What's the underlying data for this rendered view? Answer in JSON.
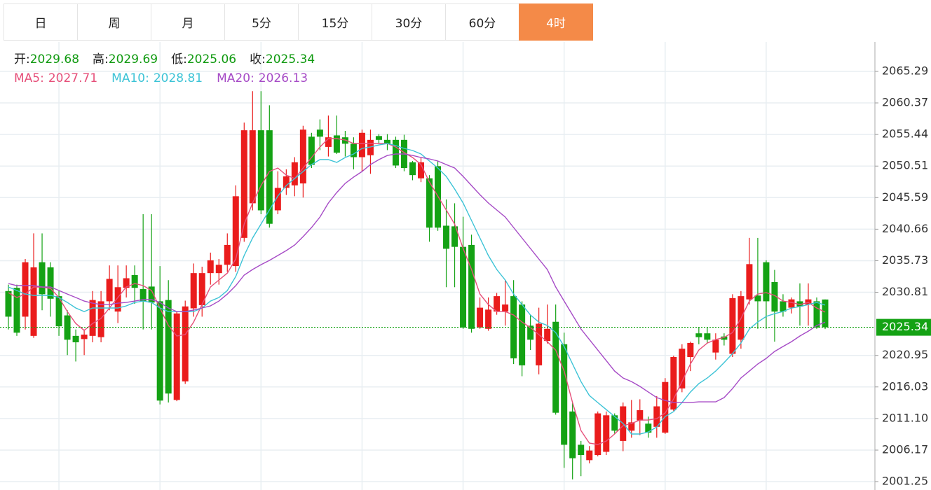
{
  "chart_data": {
    "type": "candlestick",
    "tabs": [
      "日",
      "周",
      "月",
      "5分",
      "15分",
      "30分",
      "60分",
      "4时"
    ],
    "active_tab": 7,
    "ohlc_labels": [
      "开:",
      "高:",
      "低:",
      "收:"
    ],
    "up_color": "#ea1c1c",
    "down_color": "#14a214",
    "open": [
      2031,
      2031.5,
      2027,
      2024,
      2035.5,
      2034.7,
      2030.2,
      2027.2,
      2024,
      2023.5,
      2024,
      2023.8,
      2029.4,
      2027.8,
      2031.5,
      2033.5,
      2031.3,
      2031.7,
      2029.4,
      2029.6,
      2014,
      2016.9,
      2028.3,
      2028.8,
      2033.8,
      2033.8,
      2035.1,
      2034.9,
      2039.3,
      2044.7,
      2056.1,
      2056.1,
      2043.6,
      2047.1,
      2047.5,
      2047.8,
      2055.1,
      2056.2,
      2053.5,
      2055.3,
      2055,
      2054,
      2051.9,
      2052.2,
      2055.2,
      2054.6,
      2054.6,
      2054.6,
      2051.1,
      2048.6,
      2048.6,
      2050.5,
      2041.2,
      2041.1,
      2037.9,
      2038.2,
      2025.3,
      2025.1,
      2027.8,
      2027.8,
      2030.2,
      2028.9,
      2025.6,
      2019.4,
      2023.2,
      2026.2,
      2022.7,
      2012.2,
      2007.0,
      2004.6,
      2005.4,
      2005.9,
      2011.6,
      2007.6,
      2009.2,
      2010.8,
      2010.3,
      2009.8,
      2008.9,
      2012.5,
      2015.8,
      2020.7,
      2024.4,
      2024.4,
      2021.4,
      2023.9,
      2021.2,
      2023.4,
      2029.7,
      2030.3,
      2035.5,
      2032.4,
      2029.4,
      2028.4,
      2029.4,
      2028.9,
      2029.4,
      2029.68
    ],
    "high": [
      2032,
      2032,
      2036,
      2040,
      2040,
      2035.5,
      2031,
      2028,
      2025,
      2025,
      2031,
      2031,
      2035,
      2035,
      2035,
      2035,
      2043,
      2043,
      2034.9,
      2032.7,
      2027.8,
      2029.5,
      2035.3,
      2034.8,
      2037,
      2036,
      2040,
      2047.5,
      2057.3,
      2062.2,
      2062.2,
      2060,
      2049.7,
      2050,
      2051.9,
      2056.8,
      2055.7,
      2057.8,
      2058.4,
      2058.4,
      2056,
      2055,
      2056.2,
      2056.2,
      2055.5,
      2055.5,
      2055.1,
      2055.4,
      2051.3,
      2051.9,
      2049.1,
      2051.3,
      2045.3,
      2044.7,
      2042.6,
      2039.8,
      2030,
      2030,
      2030.7,
      2032.7,
      2032.7,
      2029.4,
      2027.3,
      2028.4,
      2028.9,
      2028.9,
      2024.5,
      2013.6,
      2007.6,
      2006.8,
      2012.2,
      2012.2,
      2011.9,
      2013.6,
      2014,
      2014.1,
      2011.4,
      2014.6,
      2017.4,
      2020.9,
      2022.7,
      2023.1,
      2025.3,
      2025.3,
      2024.4,
      2024.4,
      2030.5,
      2031,
      2039.3,
      2039.3,
      2035.8,
      2034.3,
      2030.5,
      2030,
      2032.2,
      2032.2,
      2030,
      2029.69
    ],
    "low": [
      2025,
      2024,
      2025,
      2023.7,
      2028,
      2027,
      2024,
      2021,
      2020,
      2021,
      2023,
      2023,
      2028,
      2026,
      2030,
      2029,
      2025,
      2025,
      2013.3,
      2013.6,
      2013.8,
      2016.5,
      2027,
      2027,
      2032,
      2032,
      2034,
      2034,
      2038.7,
      2043.6,
      2043,
      2040.9,
      2043,
      2046,
      2045.8,
      2045.6,
      2050.2,
      2053,
      2052,
      2052.4,
      2052,
      2050,
      2049.7,
      2049.3,
      2054,
      2053,
      2050.2,
      2049.7,
      2048.3,
      2048,
      2038.7,
      2040.4,
      2031.6,
      2031.6,
      2025.1,
      2024.5,
      2025.1,
      2024.8,
      2027.3,
      2025.6,
      2019.6,
      2017.7,
      2021.8,
      2018,
      2022.8,
      2011.7,
      2003.4,
      2001.6,
      2002.1,
      2004.1,
      2005.2,
      2005.4,
      2008.7,
      2006,
      2008.1,
      2008.5,
      2008.1,
      2008.1,
      2008.7,
      2012.3,
      2015.2,
      2018.5,
      2022.7,
      2022.9,
      2020.3,
      2022.5,
      2020.7,
      2022,
      2028.9,
      2025.1,
      2025.1,
      2023.1,
      2027,
      2027.5,
      2025.6,
      2025.6,
      2025.1,
      2025.06
    ],
    "close": [
      2027,
      2024.5,
      2035.5,
      2034.7,
      2030.5,
      2029.8,
      2025.5,
      2023.4,
      2023,
      2024.2,
      2029.6,
      2029.4,
      2032.9,
      2031.6,
      2033,
      2031.5,
      2029.4,
      2029.2,
      2013.9,
      2015,
      2027.5,
      2028.6,
      2033.8,
      2033.8,
      2035.8,
      2035.1,
      2038.2,
      2045.8,
      2056.1,
      2056.1,
      2043.6,
      2041.5,
      2047.1,
      2048.9,
      2051.1,
      2056.2,
      2050.7,
      2055.1,
      2055,
      2052.6,
      2054,
      2051.9,
      2055.7,
      2054.6,
      2054.6,
      2054,
      2050.6,
      2050.2,
      2049.1,
      2051.1,
      2040.9,
      2040.9,
      2037.6,
      2037.9,
      2025.3,
      2025.1,
      2028.4,
      2028.1,
      2030.2,
      2028.9,
      2020.5,
      2019.4,
      2023.4,
      2025.9,
      2025.1,
      2012,
      2007.0,
      2004.9,
      2005.4,
      2006.1,
      2011.9,
      2011.6,
      2009.2,
      2013.0,
      2010.5,
      2012.4,
      2008.9,
      2013.0,
      2016.8,
      2020.7,
      2022.0,
      2022.9,
      2023.8,
      2023.4,
      2023.4,
      2023.4,
      2029.9,
      2030.2,
      2035.2,
      2029.4,
      2029.4,
      2027.8,
      2027.8,
      2029.7,
      2028.6,
      2029.7,
      2025.3,
      2025.34
    ],
    "series": [
      {
        "name": "MA5:",
        "color": "#e6507a",
        "values": [
          2030.75,
          2029.99,
          2030.53,
          2031.63,
          2031.63,
          2031.41,
          2029.99,
          2027.8,
          2025.94,
          2024.85,
          2025.94,
          2026.71,
          2028.35,
          2029.99,
          2031.63,
          2032.17,
          2031.85,
          2031.08,
          2028.35,
          2025.62,
          2023.98,
          2024.2,
          2026.16,
          2028.89,
          2031.63,
          2032.72,
          2033.81,
          2036.0,
          2041.46,
          2044.74,
          2047.47,
          2049.66,
          2050.21,
          2049.11,
          2048.57,
          2050.21,
          2051.85,
          2053.49,
          2054.8,
          2054.8,
          2054.58,
          2054.03,
          2054.03,
          2054.03,
          2054.03,
          2054.03,
          2053.49,
          2052.61,
          2051.85,
          2050.75,
          2048.02,
          2045.83,
          2043.65,
          2041.46,
          2037.64,
          2034.36,
          2030.53,
          2028.89,
          2027.8,
          2027.8,
          2027.26,
          2026.16,
          2025.29,
          2024.2,
          2023.1,
          2021.79,
          2018.51,
          2013.59,
          2009.22,
          2007.26,
          2007.04,
          2007.58,
          2008.68,
          2009.99,
          2010.32,
          2010.86,
          2010.86,
          2011.08,
          2011.96,
          2014.14,
          2016.87,
          2019.61,
          2021.79,
          2022.88,
          2023.43,
          2023.76,
          2024.52,
          2026.71,
          2029.44,
          2030.53,
          2030.75,
          2030.32,
          2029.44,
          2029.22,
          2028.89,
          2029.22,
          2028.35,
          2027.71
        ]
      },
      {
        "name": "MA10:",
        "color": "#3cc3d6",
        "values": [
          2031.63,
          2031.08,
          2030.53,
          2030.32,
          2030.32,
          2030.32,
          2029.99,
          2029.22,
          2028.35,
          2027.8,
          2028.35,
          2028.35,
          2028.35,
          2028.35,
          2028.68,
          2029.22,
          2029.44,
          2029.22,
          2028.35,
          2027.8,
          2027.8,
          2027.8,
          2027.8,
          2028.35,
          2029.44,
          2029.99,
          2031.08,
          2033.27,
          2036.55,
          2039.28,
          2041.46,
          2043.65,
          2045.83,
          2047.47,
          2048.57,
          2049.66,
          2050.75,
          2051.52,
          2051.52,
          2051.08,
          2051.85,
          2052.39,
          2053.27,
          2053.49,
          2053.81,
          2054.03,
          2053.71,
          2053.27,
          2052.94,
          2052.39,
          2051.3,
          2050.21,
          2048.9,
          2046.93,
          2044.74,
          2042.01,
          2039.28,
          2036.55,
          2034.36,
          2032.72,
          2030.53,
          2028.89,
          2027.26,
          2026.16,
          2025.62,
          2024.52,
          2022.34,
          2019.61,
          2016.87,
          2014.69,
          2013.59,
          2012.5,
          2011.41,
          2010.32,
          2008.68,
          2008.68,
          2009.0,
          2009.77,
          2011.41,
          2012.17,
          2013.59,
          2015.23,
          2016.54,
          2017.42,
          2018.51,
          2019.83,
          2021.24,
          2022.88,
          2025.07,
          2026.16,
          2027.04,
          2027.47,
          2027.8,
          2028.35,
          2028.57,
          2028.89,
          2029.22,
          2028.81
        ]
      },
      {
        "name": "MA20:",
        "color": "#a64bc6",
        "values": [
          2032.17,
          2031.85,
          2031.85,
          2031.85,
          2031.63,
          2031.63,
          2031.08,
          2030.53,
          2029.99,
          2029.44,
          2029.11,
          2028.89,
          2028.89,
          2029.11,
          2029.22,
          2029.44,
          2029.66,
          2029.66,
          2029.22,
          2028.35,
          2027.8,
          2027.8,
          2028.02,
          2028.35,
          2028.68,
          2029.44,
          2030.53,
          2031.85,
          2033.49,
          2034.36,
          2035.12,
          2035.78,
          2036.55,
          2037.31,
          2038.19,
          2039.5,
          2040.92,
          2042.56,
          2044.74,
          2046.38,
          2047.8,
          2048.79,
          2049.66,
          2050.75,
          2051.52,
          2052.17,
          2052.39,
          2052.39,
          2052.17,
          2051.85,
          2051.63,
          2051.3,
          2050.75,
          2050.21,
          2048.9,
          2047.47,
          2046.05,
          2044.74,
          2043.65,
          2042.56,
          2040.92,
          2039.28,
          2037.64,
          2036.0,
          2034.36,
          2031.63,
          2029.44,
          2027.26,
          2025.07,
          2023.43,
          2021.79,
          2020.15,
          2018.51,
          2017.42,
          2016.87,
          2016.11,
          2015.23,
          2014.36,
          2013.92,
          2013.59,
          2013.59,
          2013.59,
          2013.7,
          2013.7,
          2013.7,
          2014.36,
          2015.78,
          2017.42,
          2018.51,
          2019.61,
          2020.48,
          2021.57,
          2022.34,
          2023.1,
          2023.98,
          2024.74,
          2025.62,
          2026.13
        ]
      }
    ],
    "ylim": [
      1999.94,
      2069.88
    ],
    "yticks": [
      2001.25,
      2006.17,
      {
        "value": 2011.1,
        "label": "2011.10"
      },
      2016.03,
      2020.95,
      2030.81,
      2035.73,
      2040.66,
      2045.59,
      2050.51,
      2055.44,
      2060.37,
      2065.29
    ],
    "grid": true
  }
}
